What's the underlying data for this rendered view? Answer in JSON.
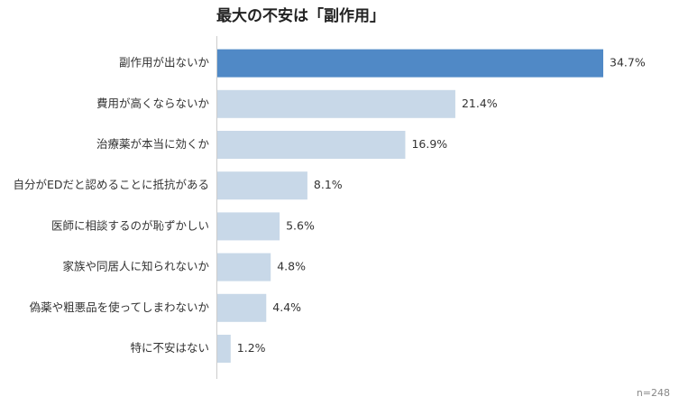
{
  "chart_data": {
    "type": "barh",
    "title": "最大の不安は「副作用」",
    "categories": [
      "副作用が出ないか",
      "費用が高くならないか",
      "治療薬が本当に効くか",
      "自分がEDだと認めることに抵抗がある",
      "医師に相談するのが恥ずかしい",
      "家族や同居人に知られないか",
      "偽薬や粗悪品を使ってしまわないか",
      "特に不安はない"
    ],
    "values": [
      34.7,
      21.4,
      16.9,
      8.1,
      5.6,
      4.8,
      4.4,
      1.2
    ],
    "value_labels": [
      "34.7%",
      "21.4%",
      "16.9%",
      "8.1%",
      "5.6%",
      "4.8%",
      "4.4%",
      "1.2%"
    ],
    "colors": [
      "#5089c6",
      "#c8d8e8",
      "#c8d8e8",
      "#c8d8e8",
      "#c8d8e8",
      "#c8d8e8",
      "#c8d8e8",
      "#c8d8e8"
    ],
    "annotation": "n=248"
  }
}
